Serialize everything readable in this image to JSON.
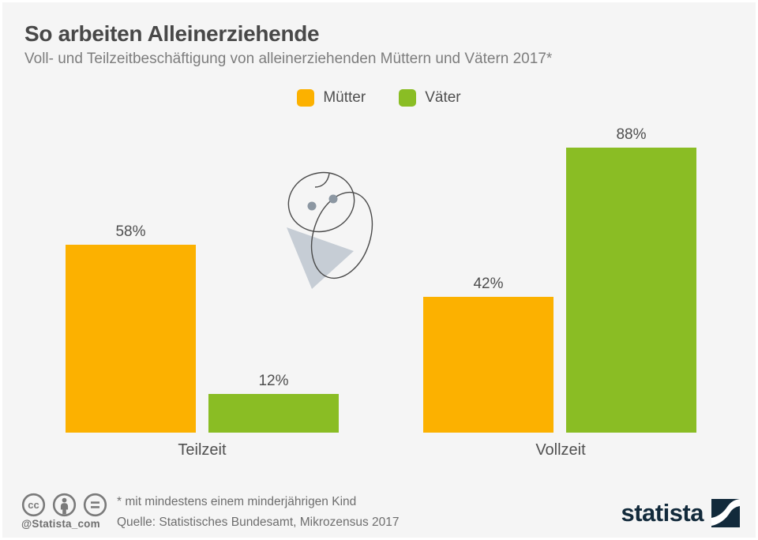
{
  "page": {
    "title": "So arbeiten Alleinerziehende",
    "subtitle": "Voll- und Teilzeitbeschäftigung von alleinerziehenden Müttern und Vätern 2017*"
  },
  "legend": {
    "items": [
      {
        "label": "Mütter",
        "color": "#FCB100"
      },
      {
        "label": "Väter",
        "color": "#8ABD24"
      }
    ]
  },
  "chart_data": {
    "type": "bar",
    "categories": [
      "Teilzeit",
      "Vollzeit"
    ],
    "series": [
      {
        "name": "Mütter",
        "color": "#FCB100",
        "values": [
          58,
          42
        ]
      },
      {
        "name": "Väter",
        "color": "#8ABD24",
        "values": [
          12,
          88
        ]
      }
    ],
    "value_suffix": "%",
    "ylim": [
      0,
      100
    ],
    "grid": false,
    "legend_position": "top-center",
    "title": "So arbeiten Alleinerziehende",
    "subtitle": "Voll- und Teilzeitbeschäftigung von alleinerziehenden Müttern und Vätern 2017*"
  },
  "illustration": {
    "name": "swaddled-baby"
  },
  "footer": {
    "footnote": "* mit mindestens einem minderjährigen Kind",
    "source": "Quelle: Statistisches Bundesamt, Mikrozensus 2017",
    "handle": "@Statista_com",
    "brand": "statista",
    "license_icons": [
      "cc-icon",
      "attribution-icon",
      "equals-icon"
    ]
  },
  "colors": {
    "background": "#F5F5F5",
    "title_text": "#484848",
    "subtitle_text": "#7D7D7D",
    "label_text": "#4F4F4F",
    "footer_text": "#6E6E6E",
    "icon_gray": "#7A7A7A",
    "brand_navy": "#122A3B",
    "muetter_orange": "#FCB100",
    "vaeter_green": "#8ABD24"
  }
}
